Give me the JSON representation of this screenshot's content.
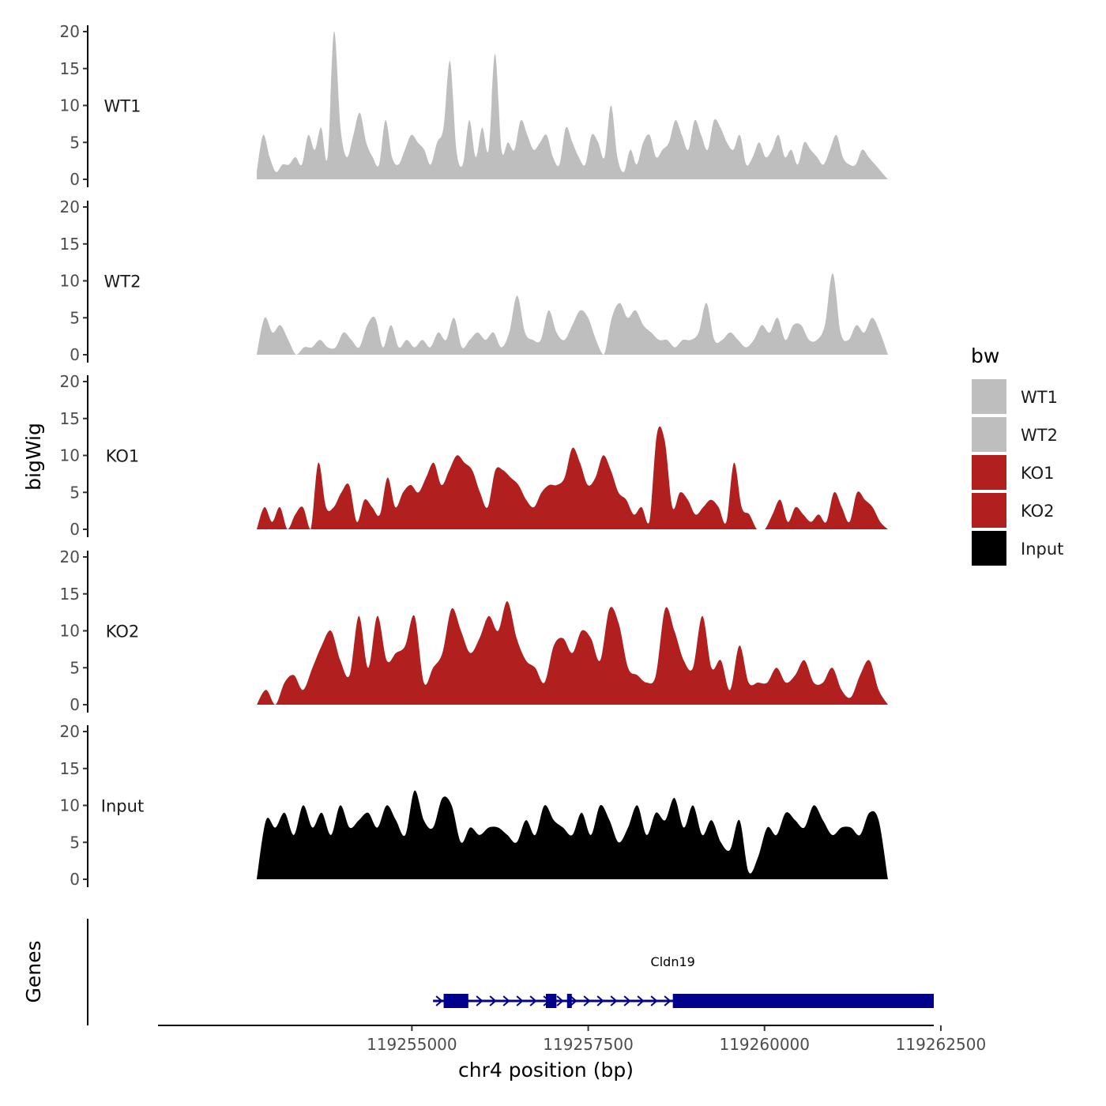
{
  "colors": {
    "WT": "#bebebe",
    "KO": "#b21f1f",
    "Input": "#000000",
    "gene": "#00008b",
    "axis": "#000000"
  },
  "chart_data": {
    "type": "area",
    "ylabel": "bigWig",
    "xlabel": "chr4 position (bp)",
    "ylim": [
      0,
      20
    ],
    "yticks": [
      0,
      5,
      10,
      15,
      20
    ],
    "ytick_labels": [
      "0",
      "5",
      "10",
      "15",
      "20"
    ],
    "xlim": [
      119251400,
      119262400
    ],
    "xticks": [
      119255000,
      119257500,
      119260000,
      119262500
    ],
    "xtick_labels": [
      "119255000",
      "119257500",
      "119260000",
      "119262500"
    ],
    "legend": {
      "title": "bw",
      "position": "right",
      "entries": [
        {
          "label": "WT1",
          "color": "#bebebe"
        },
        {
          "label": "WT2",
          "color": "#bebebe"
        },
        {
          "label": "KO1",
          "color": "#b21f1f"
        },
        {
          "label": "KO2",
          "color": "#b21f1f"
        },
        {
          "label": "Input",
          "color": "#000000"
        }
      ]
    },
    "series": [
      {
        "name": "WT1",
        "color": "#bebebe",
        "x_start": 119252800,
        "x_end": 119261750,
        "values": [
          1,
          6,
          3,
          1,
          2,
          2,
          3,
          2,
          6,
          4,
          7,
          3,
          20,
          7,
          3,
          6,
          9,
          5,
          3,
          2,
          8,
          3,
          2,
          4,
          6,
          5,
          4,
          2,
          5,
          7,
          16,
          4,
          2,
          8,
          3,
          7,
          4,
          17,
          4,
          5,
          4,
          8,
          6,
          4,
          5,
          6,
          3,
          2,
          7,
          5,
          3,
          2,
          6,
          5,
          3,
          10,
          3,
          1,
          4,
          2,
          5,
          6,
          3,
          4,
          5,
          8,
          6,
          4,
          8,
          6,
          4,
          8,
          7,
          5,
          4,
          6,
          2,
          3,
          5,
          3,
          4,
          6,
          3,
          4,
          2,
          5,
          4,
          3,
          2,
          4,
          6,
          3,
          2,
          2,
          4,
          3,
          2,
          1,
          0
        ]
      },
      {
        "name": "WT2",
        "color": "#bebebe",
        "x_start": 119252800,
        "x_end": 119261750,
        "values": [
          0,
          5,
          3,
          4,
          2,
          0,
          1,
          1,
          2,
          1,
          1,
          3,
          2,
          1,
          4,
          5,
          1,
          4,
          1,
          2,
          1,
          2,
          1,
          3,
          2,
          5,
          1,
          2,
          3,
          2,
          3,
          1,
          3,
          8,
          3,
          2,
          2,
          6,
          3,
          2,
          4,
          6,
          5,
          2,
          0,
          5,
          7,
          5,
          6,
          4,
          3,
          2,
          2,
          1,
          2,
          2,
          3,
          7,
          2,
          2,
          3,
          2,
          1,
          2,
          4,
          3,
          5,
          2,
          4,
          4,
          2,
          2,
          4,
          11,
          3,
          2,
          4,
          3,
          5,
          3,
          0
        ]
      },
      {
        "name": "KO1",
        "color": "#b21f1f",
        "x_start": 119252800,
        "x_end": 119261750,
        "values": [
          0,
          3,
          1,
          3,
          0,
          2,
          3,
          0,
          9,
          3,
          3,
          5,
          6,
          1,
          4,
          3,
          2,
          7,
          3,
          5,
          6,
          5,
          7,
          9,
          6,
          8,
          10,
          9,
          8,
          5,
          3,
          8,
          8,
          7,
          6,
          4,
          3,
          5,
          6,
          6,
          7,
          11,
          9,
          6,
          7,
          10,
          8,
          5,
          4,
          2,
          3,
          1,
          13,
          12,
          3,
          5,
          4,
          2,
          3,
          4,
          3,
          1,
          9,
          3,
          2,
          0,
          0,
          2,
          4,
          1,
          3,
          2,
          1,
          2,
          1,
          5,
          3,
          1,
          5,
          4,
          3,
          1,
          0
        ]
      },
      {
        "name": "KO2",
        "color": "#b21f1f",
        "x_start": 119252800,
        "x_end": 119261750,
        "values": [
          0,
          2,
          0,
          3,
          4,
          2,
          5,
          8,
          10,
          6,
          4,
          12,
          5,
          12,
          6,
          7,
          8,
          12,
          3,
          5,
          7,
          13,
          10,
          7,
          9,
          12,
          10,
          14,
          9,
          6,
          5,
          3,
          8,
          9,
          7,
          10,
          9,
          6,
          13,
          11,
          5,
          4,
          3,
          4,
          13,
          10,
          6,
          5,
          12,
          5,
          6,
          2,
          8,
          3,
          3,
          3,
          5,
          3,
          4,
          6,
          3,
          3,
          5,
          2,
          1,
          4,
          6,
          2,
          0
        ]
      },
      {
        "name": "Input",
        "color": "#000000",
        "x_start": 119252800,
        "x_end": 119261750,
        "values": [
          0,
          8,
          7,
          9,
          6,
          10,
          7,
          9,
          6,
          10,
          7,
          8,
          9,
          7,
          10,
          8,
          6,
          12,
          8,
          7,
          11,
          10,
          5,
          7,
          6,
          7,
          7,
          6,
          5,
          8,
          6,
          10,
          8,
          7,
          6,
          9,
          6,
          10,
          8,
          5,
          7,
          10,
          6,
          9,
          8,
          11,
          7,
          10,
          6,
          8,
          5,
          4,
          8,
          1,
          3,
          7,
          6,
          9,
          8,
          7,
          10,
          8,
          6,
          7,
          7,
          6,
          9,
          8,
          0
        ]
      }
    ],
    "genes": {
      "track_label": "Genes",
      "name": "Cldn19",
      "strand": "+",
      "x_start": 119255300,
      "x_end": 119262400,
      "exons": [
        {
          "start": 119255450,
          "end": 119255800
        },
        {
          "start": 119256900,
          "end": 119257050
        },
        {
          "start": 119257200,
          "end": 119257260
        },
        {
          "start": 119258700,
          "end": 119262400
        }
      ]
    }
  }
}
